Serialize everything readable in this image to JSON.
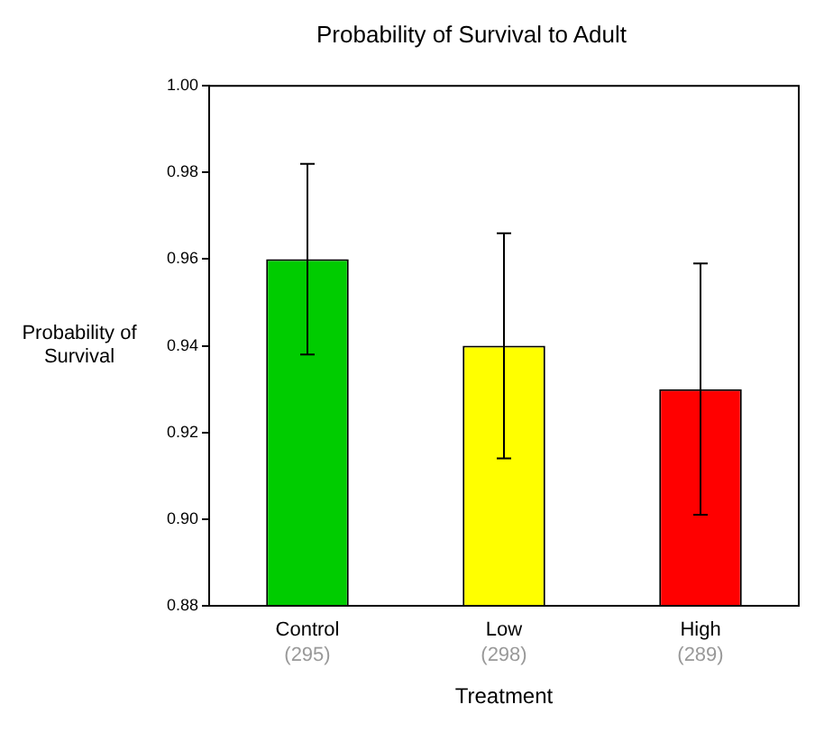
{
  "chart_data": {
    "type": "bar",
    "title": "Probability of Survival to Adult",
    "xlabel": "Treatment",
    "ylabel": "Probability of\nSurvival",
    "categories": [
      "Control",
      "Low",
      "High"
    ],
    "values": [
      0.96,
      0.94,
      0.93
    ],
    "colors": [
      "#00cc00",
      "#ffff00",
      "#ff0000"
    ],
    "errors": [
      0.022,
      0.026,
      0.029
    ],
    "ylim": [
      0.88,
      1.0
    ],
    "yticks": [
      {
        "value": 0.88,
        "label": "0.88"
      },
      {
        "value": 0.9,
        "label": "0.90"
      },
      {
        "value": 0.92,
        "label": "0.92"
      },
      {
        "value": 0.94,
        "label": "0.94"
      },
      {
        "value": 0.96,
        "label": "0.96"
      },
      {
        "value": 0.98,
        "label": "0.98"
      },
      {
        "value": 1.0,
        "label": "1.00"
      }
    ],
    "annotations": [
      "(295)",
      "(298)",
      "(289)"
    ],
    "grid": false,
    "legend": false
  }
}
